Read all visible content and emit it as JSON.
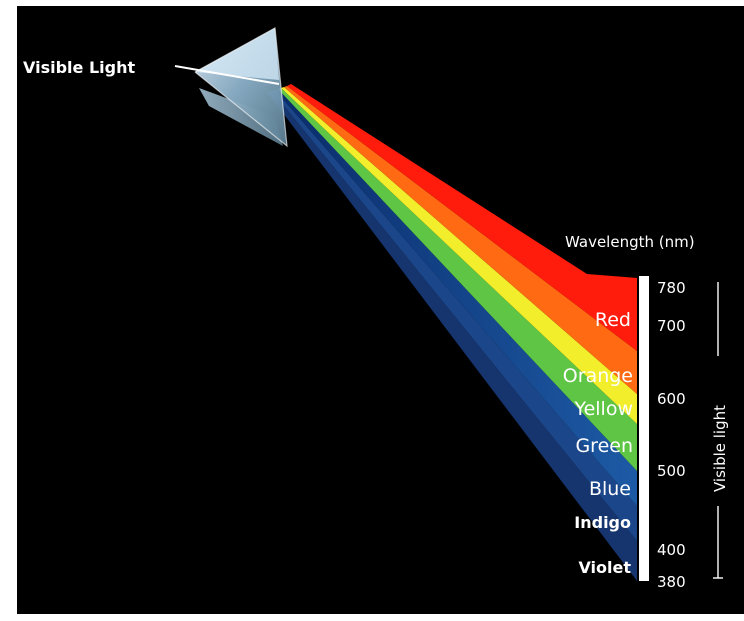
{
  "source_label": "Visible Light",
  "axis": {
    "title": "Wavelength (nm)",
    "side_label": "Visible light",
    "ticks": [
      "780",
      "700",
      "600",
      "500",
      "400",
      "380"
    ]
  },
  "bands": [
    {
      "name": "Red",
      "color": "#ff1a0a"
    },
    {
      "name": "Orange",
      "color": "#ff6a0a"
    },
    {
      "name": "Yellow",
      "color": "#f4f02a"
    },
    {
      "name": "Green",
      "color": "#66cc46"
    },
    {
      "name": "Blue",
      "color": "#1a5ea8"
    },
    {
      "name": "Indigo",
      "color": "#1d4a90"
    },
    {
      "name": "Violet",
      "color": "#1a3c7a"
    }
  ]
}
